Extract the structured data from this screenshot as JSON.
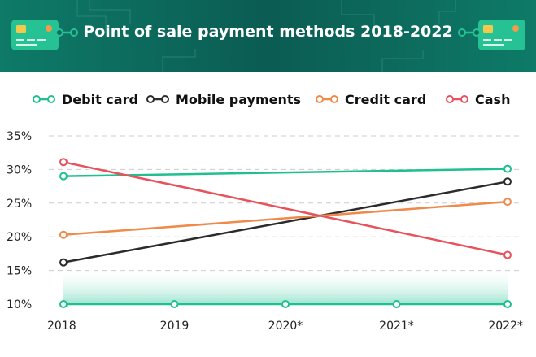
{
  "header": {
    "title": "Point of sale payment methods 2018-2022",
    "card_icon": "credit-card-icon",
    "background": "#0c6b5d"
  },
  "chart_data": {
    "type": "line",
    "title": "Point of sale payment methods 2018-2022",
    "categories": [
      "2018",
      "2019",
      "2020*",
      "2021*",
      "2022*"
    ],
    "ylim": [
      10,
      35
    ],
    "yticks": [
      "10%",
      "15%",
      "20%",
      "25%",
      "30%",
      "35%"
    ],
    "grid": true,
    "legend_position": "top",
    "series": [
      {
        "name": "Debit card",
        "color": "#1fbf8f",
        "values": [
          29.0,
          null,
          null,
          null,
          30.1
        ],
        "markers": "endpoints"
      },
      {
        "name": "Mobile payments",
        "color": "#2b2b2b",
        "values": [
          16.2,
          null,
          null,
          null,
          28.2
        ],
        "markers": "endpoints"
      },
      {
        "name": "Credit card",
        "color": "#f08a4b",
        "values": [
          20.3,
          null,
          null,
          null,
          25.2
        ],
        "markers": "endpoints"
      },
      {
        "name": "Cash",
        "color": "#e8525d",
        "values": [
          31.1,
          null,
          null,
          null,
          17.3
        ],
        "markers": "endpoints"
      }
    ],
    "baseline_markers": [
      10,
      10,
      10,
      10,
      10
    ]
  }
}
